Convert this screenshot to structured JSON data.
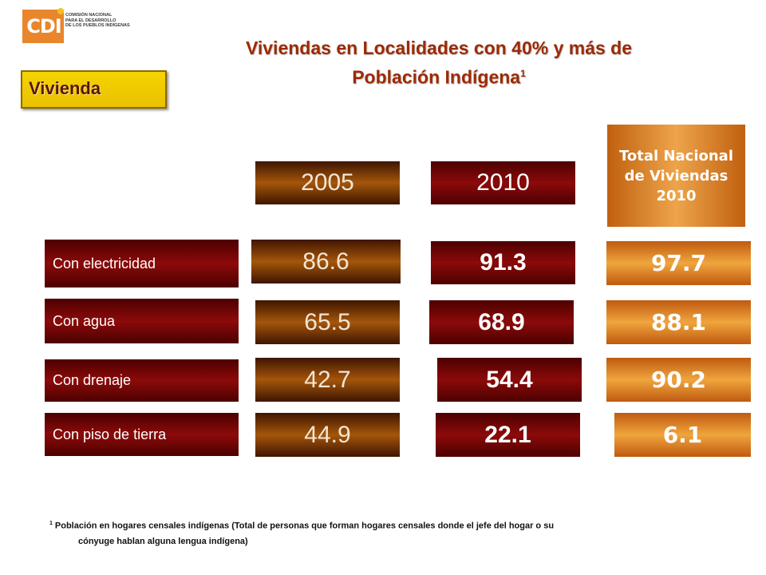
{
  "logo": {
    "letters": "CDI",
    "org_lines": [
      "COMISIÓN NACIONAL",
      "PARA EL DESARROLLO",
      "DE LOS PUEBLOS INDÍGENAS"
    ]
  },
  "title": {
    "line1": "Viviendas en Localidades con 40% y más de",
    "line2": "Población Indígena",
    "superscript": "1"
  },
  "tag": "Vivienda",
  "headers": {
    "year_2005": "2005",
    "year_2010": "2010",
    "total_lines": [
      "Total Nacional",
      "de Viviendas",
      "2010"
    ]
  },
  "rows": [
    {
      "label": "Con electricidad",
      "v2005": "86.6",
      "v2010": "91.3",
      "total": "97.7"
    },
    {
      "label": "Con agua",
      "v2005": "65.5",
      "v2010": "68.9",
      "total": "88.1"
    },
    {
      "label": "Con drenaje",
      "v2005": "42.7",
      "v2010": "54.4",
      "total": "90.2"
    },
    {
      "label": "Con piso de tierra",
      "v2005": "44.9",
      "v2010": "22.1",
      "total": "6.1"
    }
  ],
  "footnote": {
    "marker": "1",
    "line1": "Población en hogares censales indígenas (Total de personas que forman hogares censales donde el jefe del hogar o su",
    "line2": "cónyuge hablan alguna lengua indígena)"
  },
  "colors": {
    "title": "#9c2a05",
    "tag_bg": "#f5d400",
    "brown": "#a4560b",
    "dark_red": "#8c0a0a",
    "orange": "#f0a53d"
  }
}
